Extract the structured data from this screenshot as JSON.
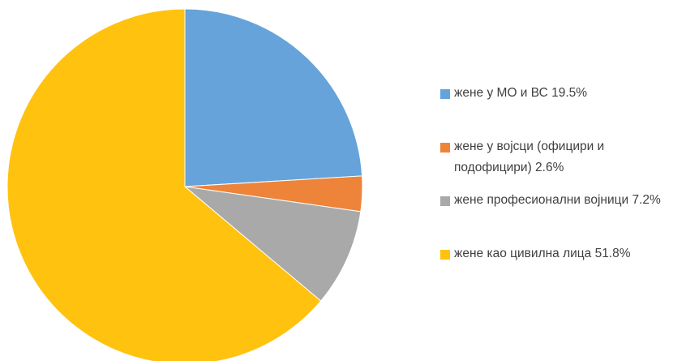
{
  "chart_data": {
    "type": "pie",
    "categories": [
      "жене у МО и ВС",
      "жене у војсци (официри и подофицири)",
      "жене професионални војници",
      "жене као цивилна лица"
    ],
    "values": [
      19.5,
      2.6,
      7.2,
      51.8
    ],
    "value_labels": [
      "19.5%",
      "2.6%",
      "7.2%",
      "51.8%"
    ],
    "colors": [
      "#65a3da",
      "#ed8439",
      "#a9a9a9",
      "#ffc20e"
    ]
  }
}
